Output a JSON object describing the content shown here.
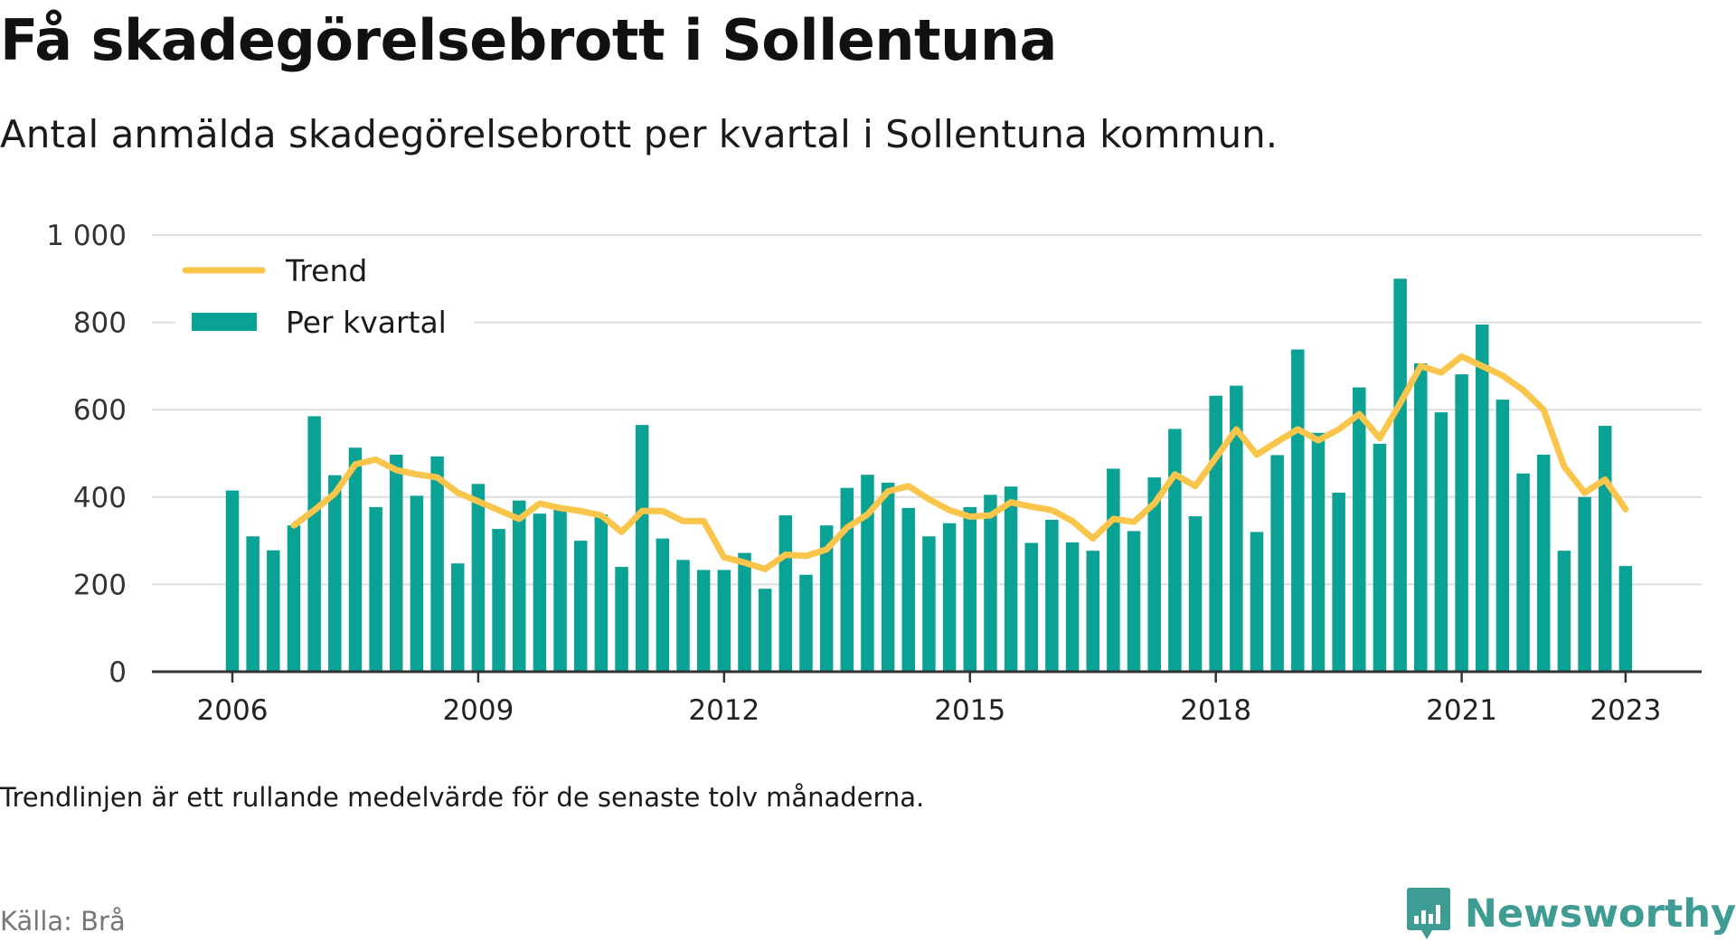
{
  "title": "Få skadegörelsebrott i Sollentuna",
  "subtitle": "Antal anmälda skadegörelsebrott per kvartal i Sollentuna kommun.",
  "footnote": "Trendlinjen är ett rullande medelvärde för de senaste tolv månaderna.",
  "source": "Källa: Brå",
  "brand": {
    "name": "Newsworthy",
    "logo_icon": "bar-chart-speech-bubble-icon",
    "color": "#3e9c94"
  },
  "colors": {
    "bars": "#0aa294",
    "trend": "#f9c54a",
    "grid": "#dddddd",
    "axis": "#333333"
  },
  "chart_data": {
    "type": "bar",
    "title": "Få skadegörelsebrott i Sollentuna",
    "xlabel": "",
    "ylabel": "",
    "ylim": [
      0,
      1000
    ],
    "y_ticks": [
      0,
      200,
      400,
      600,
      800,
      1000
    ],
    "y_tick_labels": [
      "0",
      "200",
      "400",
      "600",
      "800",
      "1 000"
    ],
    "x_ticks": [
      2006,
      2009,
      2012,
      2015,
      2018,
      2021,
      2023
    ],
    "x_tick_labels": [
      "2006",
      "2009",
      "2012",
      "2015",
      "2018",
      "2021",
      "2023"
    ],
    "grid": true,
    "legend_position": "top-left",
    "categories": [
      "2006 Q1",
      "2006 Q2",
      "2006 Q3",
      "2006 Q4",
      "2007 Q1",
      "2007 Q2",
      "2007 Q3",
      "2007 Q4",
      "2008 Q1",
      "2008 Q2",
      "2008 Q3",
      "2008 Q4",
      "2009 Q1",
      "2009 Q2",
      "2009 Q3",
      "2009 Q4",
      "2010 Q1",
      "2010 Q2",
      "2010 Q3",
      "2010 Q4",
      "2011 Q1",
      "2011 Q2",
      "2011 Q3",
      "2011 Q4",
      "2012 Q1",
      "2012 Q2",
      "2012 Q3",
      "2012 Q4",
      "2013 Q1",
      "2013 Q2",
      "2013 Q3",
      "2013 Q4",
      "2014 Q1",
      "2014 Q2",
      "2014 Q3",
      "2014 Q4",
      "2015 Q1",
      "2015 Q2",
      "2015 Q3",
      "2015 Q4",
      "2016 Q1",
      "2016 Q2",
      "2016 Q3",
      "2016 Q4",
      "2017 Q1",
      "2017 Q2",
      "2017 Q3",
      "2017 Q4",
      "2018 Q1",
      "2018 Q2",
      "2018 Q3",
      "2018 Q4",
      "2019 Q1",
      "2019 Q2",
      "2019 Q3",
      "2019 Q4",
      "2020 Q1",
      "2020 Q2",
      "2020 Q3",
      "2020 Q4",
      "2021 Q1",
      "2021 Q2",
      "2021 Q3",
      "2021 Q4",
      "2022 Q1",
      "2022 Q2",
      "2022 Q3",
      "2022 Q4",
      "2023 Q1"
    ],
    "series": [
      {
        "name": "Per kvartal",
        "type": "bar",
        "values": [
          415,
          310,
          278,
          335,
          585,
          450,
          513,
          377,
          497,
          403,
          493,
          248,
          430,
          327,
          392,
          362,
          373,
          300,
          360,
          240,
          565,
          305,
          256,
          233,
          233,
          272,
          190,
          358,
          222,
          335,
          421,
          451,
          433,
          375,
          310,
          340,
          377,
          405,
          424,
          295,
          348,
          296,
          277,
          465,
          322,
          445,
          556,
          356,
          632,
          655,
          320,
          496,
          738,
          547,
          410,
          651,
          522,
          900,
          706,
          594,
          681,
          795,
          623,
          454,
          497,
          277,
          400,
          563,
          242
        ]
      },
      {
        "name": "Trend",
        "type": "line",
        "values": [
          null,
          null,
          null,
          335,
          370,
          408,
          475,
          486,
          462,
          452,
          445,
          410,
          390,
          370,
          350,
          385,
          375,
          368,
          358,
          320,
          368,
          368,
          345,
          345,
          262,
          250,
          235,
          268,
          265,
          280,
          330,
          360,
          413,
          425,
          395,
          370,
          355,
          358,
          388,
          378,
          370,
          345,
          305,
          350,
          343,
          385,
          452,
          425,
          490,
          555,
          497,
          527,
          555,
          530,
          555,
          590,
          535,
          615,
          700,
          685,
          722,
          700,
          678,
          645,
          600,
          470,
          410,
          440,
          372
        ]
      }
    ]
  }
}
